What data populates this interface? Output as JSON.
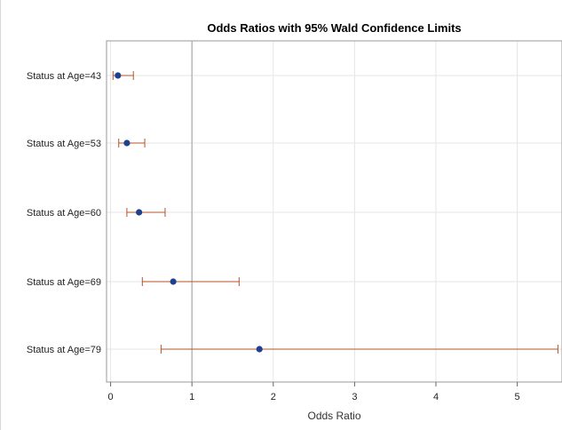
{
  "chart_data": {
    "type": "forest",
    "title": "Odds Ratios with 95% Wald Confidence Limits",
    "xlabel": "Odds Ratio",
    "ylabel": "",
    "xlim": [
      -0.05,
      5.55
    ],
    "xticks": [
      "0",
      "1",
      "2",
      "3",
      "4",
      "5"
    ],
    "reference_line": 1,
    "grid": true,
    "colors": {
      "point": "#1f3f8f",
      "interval": "#b5532a",
      "reference": "#a8a8a8",
      "grid": "#e6e6e6"
    },
    "categories": [
      "Status at Age=43",
      "Status at Age=53",
      "Status at Age=60",
      "Status at Age=69",
      "Status at Age=79"
    ],
    "estimates": [
      0.09,
      0.2,
      0.35,
      0.77,
      1.83
    ],
    "lower": [
      0.03,
      0.1,
      0.2,
      0.39,
      0.62
    ],
    "upper": [
      0.28,
      0.42,
      0.67,
      1.58,
      5.5
    ]
  }
}
